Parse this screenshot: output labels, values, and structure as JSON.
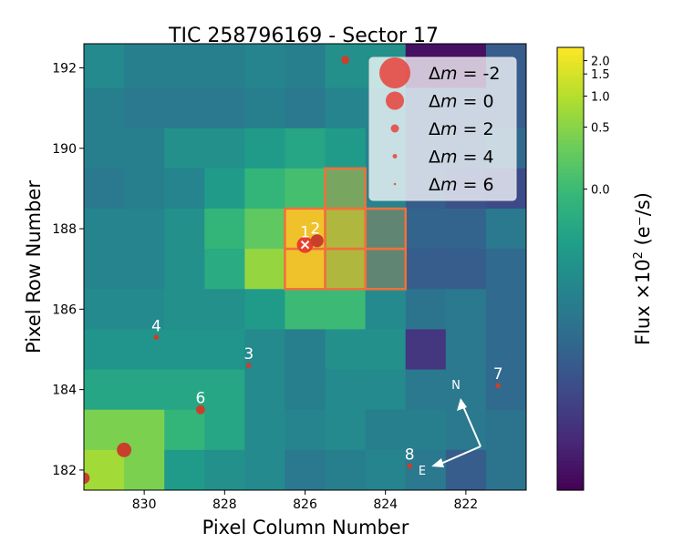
{
  "chart_data": {
    "type": "heatmap",
    "title": "TIC 258796169 - Sector 17",
    "xlabel": "Pixel Column Number",
    "ylabel": "Pixel Row Number",
    "xlim": [
      831.5,
      820.5
    ],
    "ylim": [
      181.5,
      192.6
    ],
    "xticks": [
      830,
      828,
      826,
      824,
      822
    ],
    "yticks": [
      182,
      184,
      186,
      188,
      190,
      192
    ],
    "columns": [
      831,
      830,
      829,
      828,
      827,
      826,
      825,
      824,
      823,
      822,
      821
    ],
    "rows": [
      192,
      191,
      190,
      189,
      188,
      187,
      186,
      185,
      184,
      183,
      182
    ],
    "values": [
      [
        -0.09,
        -0.11,
        -0.11,
        -0.11,
        -0.1,
        -0.11,
        -0.08,
        -0.08,
        -0.28,
        -0.28,
        -0.17
      ],
      [
        -0.11,
        -0.12,
        -0.12,
        -0.12,
        -0.11,
        -0.12,
        -0.1,
        -0.1,
        -0.17,
        -0.17,
        -0.17
      ],
      [
        -0.11,
        -0.11,
        -0.08,
        -0.08,
        -0.06,
        -0.04,
        -0.06,
        -0.1,
        -0.17,
        -0.17,
        -0.15
      ],
      [
        -0.12,
        -0.11,
        -0.1,
        -0.06,
        -0.01,
        0.07,
        0.07,
        -0.1,
        -0.17,
        -0.19,
        -0.2
      ],
      [
        -0.1,
        -0.1,
        -0.08,
        -0.01,
        0.25,
        2.07,
        0.64,
        -0.08,
        -0.16,
        -0.16,
        -0.12
      ],
      [
        -0.1,
        -0.1,
        -0.08,
        -0.03,
        0.64,
        2.07,
        0.64,
        -0.08,
        -0.17,
        -0.17,
        -0.15
      ],
      [
        -0.09,
        -0.09,
        -0.08,
        -0.08,
        -0.06,
        0.0,
        0.0,
        -0.09,
        -0.13,
        -0.12,
        -0.15
      ],
      [
        -0.07,
        -0.07,
        -0.07,
        -0.07,
        -0.09,
        -0.11,
        -0.08,
        -0.08,
        -0.23,
        -0.12,
        -0.15
      ],
      [
        -0.04,
        -0.04,
        -0.04,
        -0.04,
        -0.09,
        -0.11,
        -0.09,
        -0.09,
        -0.12,
        -0.12,
        -0.15
      ],
      [
        0.43,
        0.43,
        -0.01,
        -0.04,
        -0.09,
        -0.1,
        -0.09,
        -0.11,
        -0.11,
        -0.12,
        -0.13
      ],
      [
        0.79,
        0.43,
        -0.06,
        -0.08,
        -0.09,
        -0.12,
        -0.11,
        -0.1,
        -0.12,
        -0.17,
        -0.13
      ]
    ],
    "aperture": [
      [
        825,
        189
      ],
      [
        826,
        188
      ],
      [
        825,
        188
      ],
      [
        824,
        188
      ],
      [
        826,
        187
      ],
      [
        825,
        187
      ],
      [
        824,
        187
      ]
    ],
    "aperture_color": "#f0703c",
    "colormap": "viridis",
    "colorbar": {
      "label": "Flux ×10² (e⁻/s)",
      "label_main": "Flux ×10",
      "label_exp": "2",
      "label_unit": " (e⁻/s)",
      "ticks": [
        "0.0",
        "0.5",
        "1.0",
        "1.5",
        "2.0"
      ],
      "range": [
        -0.3,
        2.2
      ],
      "stretch": "nonlinear"
    },
    "stars": [
      {
        "label": "1",
        "x": 826.0,
        "y": 187.6,
        "dm": 0.5,
        "target": true
      },
      {
        "label": "2",
        "x": 825.7,
        "y": 187.7,
        "dm": 1.5
      },
      {
        "label": "",
        "x": 825.0,
        "y": 192.2,
        "dm": 3.5
      },
      {
        "label": "4",
        "x": 829.7,
        "y": 185.3,
        "dm": 5.5
      },
      {
        "label": "3",
        "x": 827.4,
        "y": 184.6,
        "dm": 5.5
      },
      {
        "label": "6",
        "x": 828.6,
        "y": 183.5,
        "dm": 3
      },
      {
        "label": "",
        "x": 830.5,
        "y": 182.5,
        "dm": 1
      },
      {
        "label": "",
        "x": 831.5,
        "y": 181.8,
        "dm": 2
      },
      {
        "label": "7",
        "x": 821.2,
        "y": 184.1,
        "dm": 5.5
      },
      {
        "label": "8",
        "x": 823.4,
        "y": 182.1,
        "dm": 5.5
      }
    ],
    "star_color": "#e8423c",
    "legend": {
      "placement": "top-right",
      "entries": [
        {
          "prefix": "Δ",
          "var": "m",
          "eq": " = ",
          "value": "-2",
          "dm": -2
        },
        {
          "prefix": "Δ",
          "var": "m",
          "eq": " = ",
          "value": "0",
          "dm": 0
        },
        {
          "prefix": "Δ",
          "var": "m",
          "eq": " = ",
          "value": "2",
          "dm": 2
        },
        {
          "prefix": "Δ",
          "var": "m",
          "eq": " = ",
          "value": "4",
          "dm": 4
        },
        {
          "prefix": "Δ",
          "var": "m",
          "eq": " = ",
          "value": "6",
          "dm": 6
        }
      ]
    },
    "compass": {
      "north": "N",
      "east": "E"
    }
  }
}
